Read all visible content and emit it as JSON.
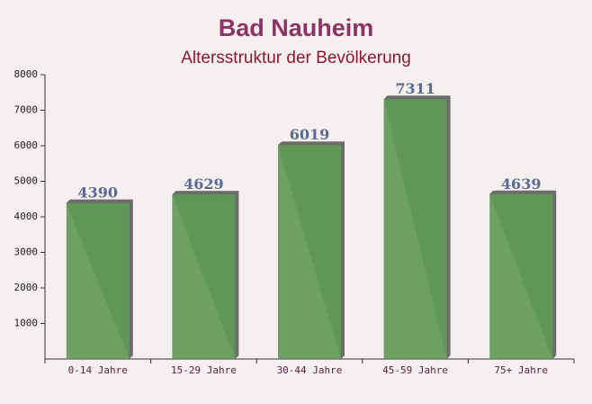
{
  "chart_data": {
    "type": "bar",
    "title": "Bad Nauheim",
    "subtitle": "Altersstruktur der Bevölkerung",
    "categories": [
      "0-14 Jahre",
      "15-29 Jahre",
      "30-44 Jahre",
      "45-59 Jahre",
      "75+ Jahre"
    ],
    "values": [
      4390,
      4629,
      6019,
      7311,
      4639
    ],
    "color": "#5f9a55",
    "ylim": [
      0,
      8000
    ],
    "yticks": [
      1000,
      2000,
      3000,
      4000,
      5000,
      6000,
      7000,
      8000
    ]
  }
}
